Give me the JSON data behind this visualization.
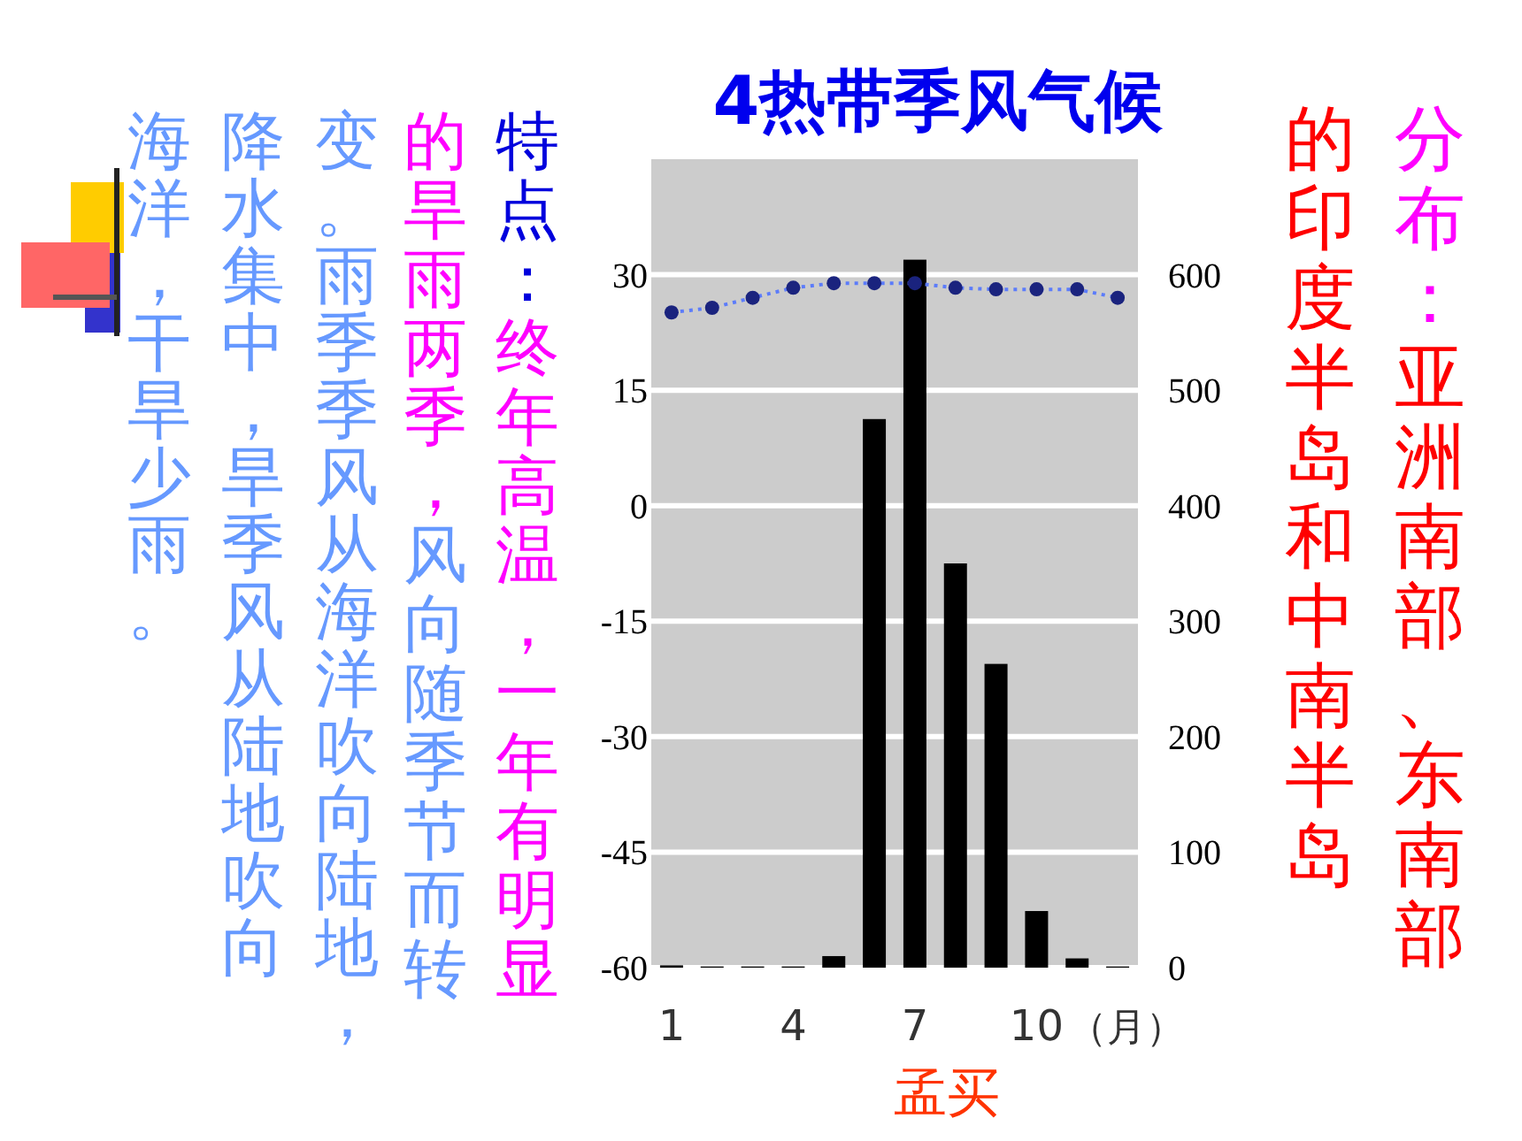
{
  "chart_data": {
    "type": "bar",
    "title": "4热带季风气候",
    "xlabel": "（月）",
    "categories": [
      "1",
      null,
      null,
      "4",
      null,
      null,
      "7",
      null,
      null,
      "10",
      null,
      null
    ],
    "series": [
      {
        "axis": "y2",
        "color": "#000000",
        "values": [
          2,
          1,
          1,
          1,
          10,
          475,
          613,
          350,
          263,
          49,
          8,
          1
        ]
      },
      {
        "type": "line",
        "color": "#1a237e",
        "line_style": "dotted",
        "marker": "circle",
        "values": [
          25.1,
          25.7,
          27,
          28.3,
          28.9,
          28.9,
          28.9,
          28.3,
          28.1,
          28.1,
          28.1,
          27
        ]
      }
    ],
    "ylim": [
      -60,
      45
    ],
    "yticks": [
      -60,
      -45,
      -30,
      -15,
      0,
      15,
      30
    ],
    "y2lim": [
      0,
      700
    ],
    "y2ticks": [
      0,
      100,
      200,
      300,
      400,
      500,
      600
    ],
    "grid": "y",
    "annotations": [
      "孟买",
      "特点：",
      "终年高温，一年有明显",
      "的旱雨两季，",
      "风向随季节而转",
      "变。雨季季风从海洋吹向陆地，",
      "降水集中，旱季风从陆地吹向",
      "海洋，干旱少雨。",
      "分布：",
      "亚洲南部、东南部",
      "的印度半岛和中南半岛"
    ]
  }
}
